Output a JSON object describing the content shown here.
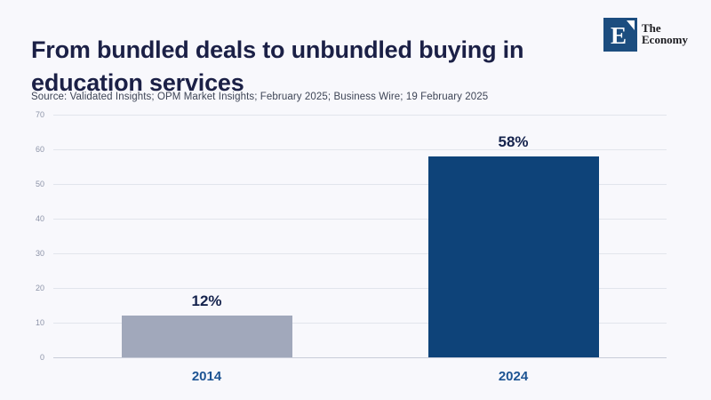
{
  "header": {
    "title": "From bundled deals to unbundled buying in education services",
    "logo": {
      "letter": "E",
      "name_line1": "The",
      "name_line2": "Economy"
    }
  },
  "source": "Source: Validated Insights; OPM Market Insights; February 2025; Business Wire; 19 February 2025",
  "chart_data": {
    "type": "bar",
    "title": "From bundled deals to unbundled buying in education services",
    "categories": [
      "2014",
      "2024"
    ],
    "values": [
      12,
      58
    ],
    "value_labels": [
      "12%",
      "58%"
    ],
    "bar_colors": [
      "#a1a8bb",
      "#0e4379"
    ],
    "yticks": [
      0,
      10,
      20,
      30,
      40,
      50,
      60,
      70
    ],
    "ylim": [
      0,
      70
    ],
    "grid": true,
    "legend": "none",
    "xlabel": "",
    "ylabel": "",
    "colors": {
      "background": "#f8f8fc",
      "gridline": "#e2e5ec",
      "zero_line": "#c9cdd9",
      "tick_label": "#8d94a8",
      "category_label": "#1d5493",
      "value_label": "#15234d",
      "title": "#1b2046",
      "logo_square": "#1c4d7f"
    }
  }
}
